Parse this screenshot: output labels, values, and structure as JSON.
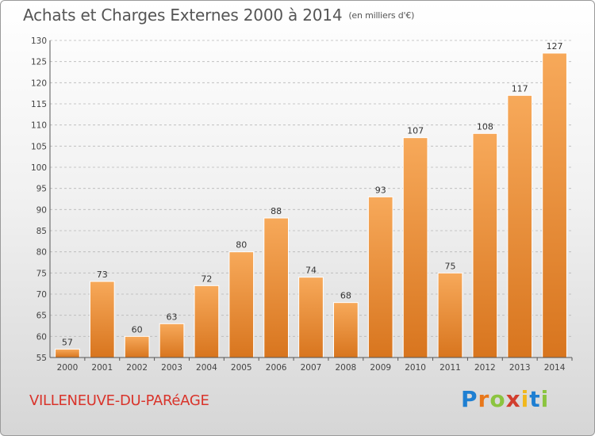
{
  "header": {
    "title": "Achats et Charges Externes 2000 à 2014",
    "subtitle": "(en milliers d'€)"
  },
  "footer": {
    "place": "VILLENEUVE-DU-PARéAGE",
    "logo": [
      "P",
      "r",
      "o",
      "x",
      "i",
      "t",
      "i"
    ]
  },
  "colors": {
    "bar_top": "#f7a95a",
    "bar_bottom": "#d8751e",
    "grid": "#b8b8b8",
    "place": "#d9342b"
  },
  "chart_data": {
    "type": "bar",
    "title": "Achats et Charges Externes 2000 à 2014",
    "subtitle": "(en milliers d'€)",
    "categories": [
      "2000",
      "2001",
      "2002",
      "2003",
      "2004",
      "2005",
      "2006",
      "2007",
      "2008",
      "2009",
      "2010",
      "2011",
      "2012",
      "2013",
      "2014"
    ],
    "values": [
      57,
      73,
      60,
      63,
      72,
      80,
      88,
      74,
      68,
      93,
      107,
      75,
      108,
      117,
      127
    ],
    "ylim": [
      55,
      130
    ],
    "yticks": [
      55,
      60,
      65,
      70,
      75,
      80,
      85,
      90,
      95,
      100,
      105,
      110,
      115,
      120,
      125,
      130
    ],
    "grid": true,
    "xlabel": "",
    "ylabel": ""
  }
}
